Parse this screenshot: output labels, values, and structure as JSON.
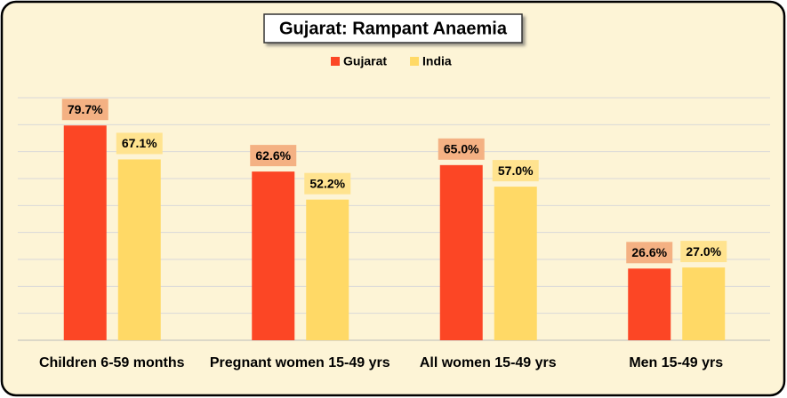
{
  "chart_data": {
    "type": "bar",
    "title": "Gujarat:  Rampant Anaemia",
    "categories": [
      "Children 6-59 months",
      "Pregnant women 15-49 yrs",
      "All women 15-49 yrs",
      "Men 15-49 yrs"
    ],
    "series": [
      {
        "name": "Gujarat",
        "color": "#fc4625",
        "label_color": "#f4b183",
        "values": [
          79.7,
          62.6,
          65.0,
          26.6
        ],
        "value_labels": [
          "79.7%",
          "62.6%",
          "65.0%",
          "26.6%"
        ]
      },
      {
        "name": "India",
        "color": "#ffd966",
        "label_color": "#ffe38f",
        "values": [
          67.1,
          52.2,
          57.0,
          27.0
        ],
        "value_labels": [
          "67.1%",
          "52.2%",
          "57.0%",
          "27.0%"
        ]
      }
    ],
    "ylim": [
      0,
      90
    ],
    "yticks": [
      0,
      10,
      20,
      30,
      40,
      50,
      60,
      70,
      80,
      90
    ],
    "grid": true,
    "legend": "top"
  }
}
